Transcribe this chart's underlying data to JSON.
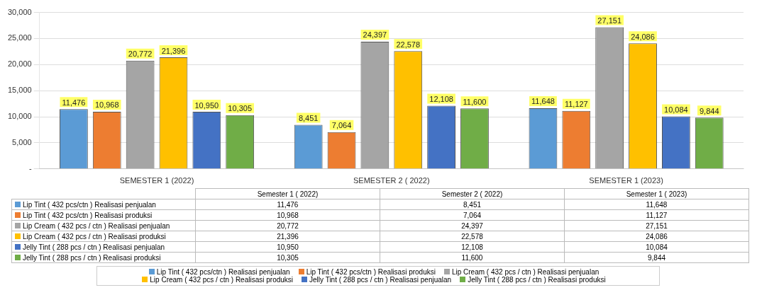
{
  "chart_data": {
    "type": "bar",
    "categories": [
      "SEMESTER 1 (2022)",
      "SEMESTER 2 ( 2022)",
      "SEMESTER 1 (2023)"
    ],
    "annotations": [
      "Semester 1 ( 2022)",
      "Semester 2 ( 2022)",
      "Semester 1 ( 2023)"
    ],
    "series": [
      {
        "name": "Lip Tint ( 432 pcs/ctn ) Realisasi penjualan",
        "color": "#5b9bd5",
        "values": [
          11476,
          8451,
          11648
        ],
        "value_labels": [
          "11,476",
          "8,451",
          "11,648"
        ]
      },
      {
        "name": "Lip Tint ( 432 pcs/ctn ) Realisasi produksi",
        "color": "#ed7d31",
        "values": [
          10968,
          7064,
          11127
        ],
        "value_labels": [
          "10,968",
          "7,064",
          "11,127"
        ]
      },
      {
        "name": "Lip Cream ( 432 pcs / ctn )  Realisasi penjualan",
        "color": "#a5a5a5",
        "values": [
          20772,
          24397,
          27151
        ],
        "value_labels": [
          "20,772",
          "24,397",
          "27,151"
        ]
      },
      {
        "name": "Lip Cream ( 432 pcs / ctn )  Realisasi produksi",
        "color": "#ffc000",
        "values": [
          21396,
          22578,
          24086
        ],
        "value_labels": [
          "21,396",
          "22,578",
          "24,086"
        ]
      },
      {
        "name": "Jelly Tint ( 288 pcs / ctn ) Realisasi penjualan",
        "color": "#4472c4",
        "values": [
          10950,
          12108,
          10084
        ],
        "value_labels": [
          "10,950",
          "12,108",
          "10,084"
        ]
      },
      {
        "name": "Jelly Tint ( 288 pcs / ctn ) Realisasi produksi",
        "color": "#70ad47",
        "values": [
          10305,
          11600,
          9844
        ],
        "value_labels": [
          "10,305",
          "11,600",
          "9,844"
        ]
      }
    ],
    "ylim": [
      0,
      30000
    ],
    "yticks": [
      {
        "value": 0,
        "label": "-"
      },
      {
        "value": 5000,
        "label": "5,000"
      },
      {
        "value": 10000,
        "label": "10,000"
      },
      {
        "value": 15000,
        "label": "15,000"
      },
      {
        "value": 20000,
        "label": "20,000"
      },
      {
        "value": 25000,
        "label": "25,000"
      },
      {
        "value": 30000,
        "label": "30,000"
      }
    ],
    "grid": "y",
    "legend": "bottom"
  }
}
